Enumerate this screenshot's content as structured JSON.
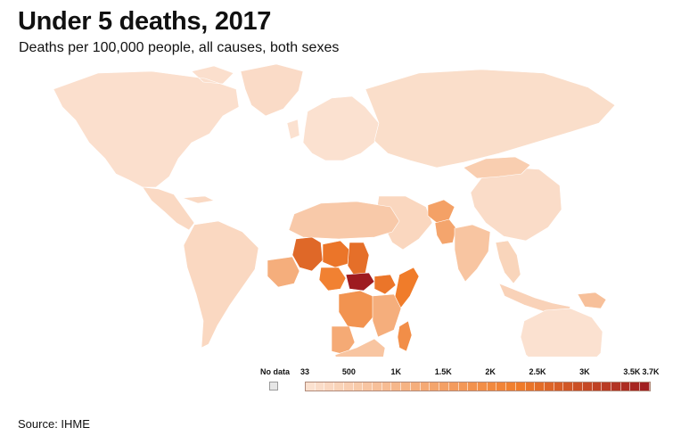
{
  "title": "Under 5 deaths, 2017",
  "subtitle": "Deaths per 100,000 people, all causes, both sexes",
  "source": "Source: IHME",
  "legend": {
    "no_data_label": "No data",
    "no_data_color": "#e6e6e6",
    "scale_labels": [
      "33",
      "500",
      "1K",
      "1.5K",
      "2K",
      "2.5K",
      "3K",
      "3.5K",
      "3.7K"
    ],
    "scale_min": 33,
    "scale_max": 3700,
    "steps": 36,
    "low_color": "#fbe3d3",
    "mid_color": "#f07c2a",
    "high_color": "#9e1b20"
  },
  "chart_data": {
    "type": "choropleth",
    "metric": "Deaths per 100,000 people, all causes, both sexes",
    "year": 2017,
    "regions": [
      {
        "name": "North America",
        "value": 120
      },
      {
        "name": "Greenland",
        "value": 200
      },
      {
        "name": "Central America",
        "value": 250
      },
      {
        "name": "South America",
        "value": 280
      },
      {
        "name": "Europe",
        "value": 80
      },
      {
        "name": "Russia",
        "value": 150
      },
      {
        "name": "China",
        "value": 180
      },
      {
        "name": "Mongolia",
        "value": 500
      },
      {
        "name": "Middle East",
        "value": 300
      },
      {
        "name": "Afghanistan",
        "value": 1500
      },
      {
        "name": "Pakistan",
        "value": 1400
      },
      {
        "name": "India",
        "value": 700
      },
      {
        "name": "Southeast Asia",
        "value": 350
      },
      {
        "name": "Indonesia",
        "value": 400
      },
      {
        "name": "Papua New Guinea",
        "value": 800
      },
      {
        "name": "Australia",
        "value": 80
      },
      {
        "name": "North Africa",
        "value": 600
      },
      {
        "name": "Mali",
        "value": 2600
      },
      {
        "name": "Niger",
        "value": 2400
      },
      {
        "name": "Chad",
        "value": 2500
      },
      {
        "name": "Nigeria",
        "value": 2200
      },
      {
        "name": "Central African Republic",
        "value": 3700
      },
      {
        "name": "South Sudan",
        "value": 2400
      },
      {
        "name": "Somalia",
        "value": 2300
      },
      {
        "name": "DR Congo",
        "value": 1800
      },
      {
        "name": "Central & East Africa",
        "value": 1200
      },
      {
        "name": "Angola",
        "value": 1300
      },
      {
        "name": "Southern Africa",
        "value": 700
      },
      {
        "name": "Madagascar",
        "value": 1900
      }
    ]
  }
}
